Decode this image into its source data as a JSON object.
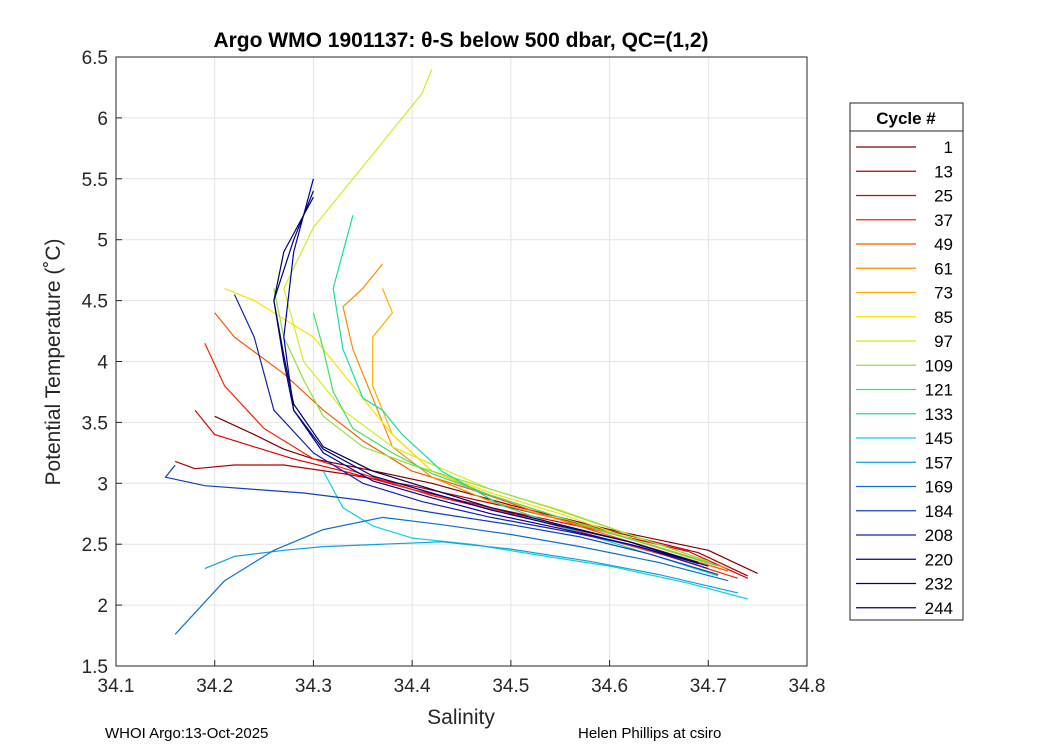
{
  "chart_data": {
    "type": "line",
    "title": "Argo WMO 1901137: θ-S below 500 dbar,  QC=(1,2)",
    "xlabel": "Salinity",
    "ylabel": "Potential Temperature (˚C)",
    "xlim": [
      34.1,
      34.8
    ],
    "ylim": [
      1.5,
      6.5
    ],
    "xticks": [
      "34.1",
      "34.2",
      "34.3",
      "34.4",
      "34.5",
      "34.6",
      "34.7",
      "34.8"
    ],
    "yticks": [
      "1.5",
      "2",
      "2.5",
      "3",
      "3.5",
      "4",
      "4.5",
      "5",
      "5.5",
      "6",
      "6.5"
    ],
    "grid": true,
    "legend_title": "Cycle #",
    "legend_position": "right-outside",
    "series": [
      {
        "name": "1",
        "color": "#800000",
        "x": [
          34.75,
          34.7,
          34.6,
          34.5,
          34.42,
          34.35,
          34.3,
          34.27,
          34.24,
          34.2
        ],
        "y": [
          2.26,
          2.45,
          2.62,
          2.82,
          3.0,
          3.12,
          3.2,
          3.28,
          3.4,
          3.55
        ]
      },
      {
        "name": "13",
        "color": "#b00000",
        "x": [
          34.74,
          34.69,
          34.6,
          34.5,
          34.4,
          34.33,
          34.27,
          34.22,
          34.18,
          34.16
        ],
        "y": [
          2.24,
          2.43,
          2.61,
          2.8,
          2.98,
          3.08,
          3.15,
          3.15,
          3.12,
          3.18
        ]
      },
      {
        "name": "25",
        "color": "#e00000",
        "x": [
          34.74,
          34.68,
          34.58,
          34.48,
          34.4,
          34.33,
          34.28,
          34.24,
          34.2,
          34.18
        ],
        "y": [
          2.22,
          2.44,
          2.63,
          2.8,
          2.95,
          3.1,
          3.2,
          3.3,
          3.4,
          3.6
        ]
      },
      {
        "name": "37",
        "color": "#ff2000",
        "x": [
          34.73,
          34.66,
          34.58,
          34.5,
          34.42,
          34.36,
          34.3,
          34.25,
          34.21,
          34.19
        ],
        "y": [
          2.22,
          2.4,
          2.58,
          2.75,
          2.9,
          3.05,
          3.2,
          3.45,
          3.8,
          4.15
        ]
      },
      {
        "name": "49",
        "color": "#ff5500",
        "x": [
          34.72,
          34.65,
          34.58,
          34.52,
          34.46,
          34.4,
          34.35,
          34.31,
          34.27,
          34.22,
          34.2
        ],
        "y": [
          2.28,
          2.45,
          2.62,
          2.78,
          2.95,
          3.1,
          3.35,
          3.6,
          3.9,
          4.2,
          4.4
        ]
      },
      {
        "name": "61",
        "color": "#ff8800",
        "x": [
          34.72,
          34.64,
          34.56,
          34.48,
          34.42,
          34.38,
          34.36,
          34.34,
          34.33,
          34.35,
          34.37
        ],
        "y": [
          2.3,
          2.5,
          2.68,
          2.85,
          3.05,
          3.3,
          3.7,
          4.1,
          4.45,
          4.6,
          4.8
        ]
      },
      {
        "name": "73",
        "color": "#ffb000",
        "x": [
          34.71,
          34.63,
          34.55,
          34.48,
          34.42,
          34.38,
          34.36,
          34.36,
          34.38,
          34.37
        ],
        "y": [
          2.32,
          2.52,
          2.72,
          2.9,
          3.1,
          3.4,
          3.8,
          4.2,
          4.4,
          4.6
        ]
      },
      {
        "name": "85",
        "color": "#ffe000",
        "x": [
          34.7,
          34.62,
          34.55,
          34.48,
          34.42,
          34.38,
          34.34,
          34.3,
          34.24,
          34.21
        ],
        "y": [
          2.34,
          2.55,
          2.75,
          2.92,
          3.1,
          3.4,
          3.8,
          4.2,
          4.5,
          4.6
        ]
      },
      {
        "name": "97",
        "color": "#d0ee20",
        "x": [
          34.7,
          34.62,
          34.55,
          34.48,
          34.43,
          34.38,
          34.33,
          34.29,
          34.27,
          34.3,
          34.34,
          34.38,
          34.41,
          34.42
        ],
        "y": [
          2.36,
          2.58,
          2.78,
          2.95,
          3.12,
          3.3,
          3.6,
          4.0,
          4.6,
          5.1,
          5.5,
          5.9,
          6.2,
          6.4
        ]
      },
      {
        "name": "109",
        "color": "#90e040",
        "x": [
          34.7,
          34.62,
          34.54,
          34.46,
          34.4,
          34.35,
          34.31,
          34.29,
          34.27,
          34.26
        ],
        "y": [
          2.36,
          2.58,
          2.8,
          3.0,
          3.15,
          3.3,
          3.55,
          3.85,
          4.2,
          4.6
        ]
      },
      {
        "name": "121",
        "color": "#40e060",
        "x": [
          34.71,
          34.63,
          34.55,
          34.48,
          34.42,
          34.38,
          34.34,
          34.32,
          34.31,
          34.3
        ],
        "y": [
          2.32,
          2.52,
          2.72,
          2.9,
          3.08,
          3.25,
          3.45,
          3.75,
          4.1,
          4.4
        ]
      },
      {
        "name": "133",
        "color": "#10e0a0",
        "x": [
          34.71,
          34.64,
          34.56,
          34.49,
          34.43,
          34.39,
          34.37,
          34.35,
          34.33,
          34.32,
          34.34
        ],
        "y": [
          2.24,
          2.42,
          2.62,
          2.82,
          3.1,
          3.4,
          3.6,
          3.7,
          4.1,
          4.6,
          5.2
        ]
      },
      {
        "name": "145",
        "color": "#10d0e0",
        "x": [
          34.74,
          34.68,
          34.6,
          34.52,
          34.46,
          34.4,
          34.36,
          34.33,
          34.31
        ],
        "y": [
          2.05,
          2.18,
          2.32,
          2.42,
          2.5,
          2.55,
          2.65,
          2.8,
          3.1
        ]
      },
      {
        "name": "157",
        "color": "#10a0e0",
        "x": [
          34.73,
          34.65,
          34.58,
          34.5,
          34.43,
          34.37,
          34.31,
          34.27,
          34.22,
          34.19
        ],
        "y": [
          2.1,
          2.25,
          2.36,
          2.46,
          2.52,
          2.5,
          2.48,
          2.45,
          2.4,
          2.3
        ]
      },
      {
        "name": "169",
        "color": "#1070d0",
        "x": [
          34.72,
          34.65,
          34.57,
          34.5,
          34.43,
          34.37,
          34.31,
          34.26,
          34.21,
          34.16
        ],
        "y": [
          2.2,
          2.35,
          2.48,
          2.58,
          2.66,
          2.72,
          2.62,
          2.45,
          2.2,
          1.76
        ]
      },
      {
        "name": "184",
        "color": "#1040c0",
        "x": [
          34.71,
          34.64,
          34.57,
          34.5,
          34.42,
          34.35,
          34.29,
          34.24,
          34.19,
          34.15,
          34.16
        ],
        "y": [
          2.25,
          2.42,
          2.56,
          2.66,
          2.76,
          2.86,
          2.92,
          2.95,
          2.98,
          3.05,
          3.15
        ]
      },
      {
        "name": "208",
        "color": "#1020b0",
        "x": [
          34.7,
          34.63,
          34.56,
          34.48,
          34.41,
          34.35,
          34.3,
          34.26,
          34.24,
          34.22
        ],
        "y": [
          2.3,
          2.48,
          2.6,
          2.72,
          2.85,
          3.0,
          3.25,
          3.6,
          4.2,
          4.55
        ]
      },
      {
        "name": "220",
        "color": "#0000a0",
        "x": [
          34.7,
          34.62,
          34.55,
          34.48,
          34.42,
          34.36,
          34.31,
          34.28,
          34.27,
          34.28,
          34.3
        ],
        "y": [
          2.32,
          2.5,
          2.63,
          2.75,
          2.88,
          3.02,
          3.25,
          3.6,
          4.2,
          4.9,
          5.5
        ]
      },
      {
        "name": "232",
        "color": "#000080",
        "x": [
          34.69,
          34.62,
          34.55,
          34.48,
          34.42,
          34.36,
          34.31,
          34.28,
          34.27,
          34.26,
          34.28,
          34.3
        ],
        "y": [
          2.35,
          2.52,
          2.65,
          2.78,
          2.92,
          3.06,
          3.28,
          3.6,
          4.0,
          4.5,
          5.0,
          5.4
        ]
      },
      {
        "name": "244",
        "color": "#000060",
        "x": [
          34.69,
          34.62,
          34.55,
          34.48,
          34.42,
          34.36,
          34.31,
          34.28,
          34.27,
          34.26,
          34.27,
          34.3
        ],
        "y": [
          2.34,
          2.52,
          2.66,
          2.8,
          2.95,
          3.1,
          3.3,
          3.65,
          4.05,
          4.5,
          4.9,
          5.35
        ]
      }
    ]
  },
  "footer": {
    "left": "WHOI Argo:13-Oct-2025",
    "right": "Helen Phillips at csiro"
  }
}
